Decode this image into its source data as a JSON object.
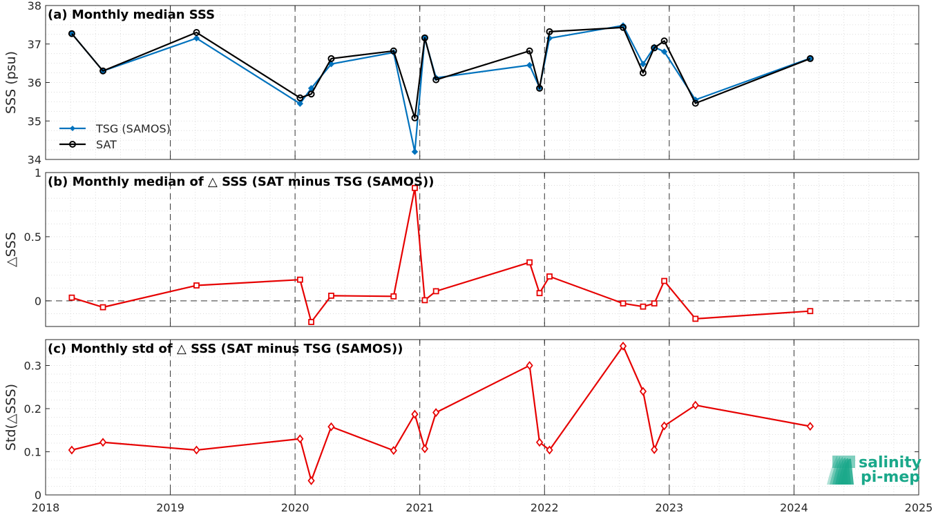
{
  "colors": {
    "tsg": "#0072BD",
    "sat": "#000000",
    "delta": "#E60000",
    "logo": "#1aa88a"
  },
  "logo": {
    "line1": "salinity",
    "line2": "pi-mep"
  },
  "x_ticks": [
    "2018",
    "2019",
    "2020",
    "2021",
    "2022",
    "2023",
    "2024",
    "2025"
  ],
  "chart_data": [
    {
      "type": "line",
      "title": "(a) Monthly median SSS",
      "ylabel": "SSS (psu)",
      "xlim": [
        2018,
        2025
      ],
      "ylim": [
        34,
        38
      ],
      "yticks": [
        "34",
        "35",
        "36",
        "37",
        "38"
      ],
      "grid": true,
      "legend": "bottom-left",
      "x": [
        2018.21,
        2018.46,
        2019.21,
        2020.04,
        2020.13,
        2020.29,
        2020.79,
        2020.96,
        2021.04,
        2021.13,
        2021.88,
        2021.96,
        2022.04,
        2022.63,
        2022.79,
        2022.88,
        2022.96,
        2023.21,
        2024.13
      ],
      "series": [
        {
          "name": "TSG (SAMOS)",
          "color": "#0072BD",
          "marker": "dot",
          "values": [
            37.27,
            36.3,
            37.15,
            35.45,
            35.85,
            36.48,
            36.78,
            34.2,
            37.15,
            36.12,
            36.45,
            35.87,
            37.15,
            37.48,
            36.48,
            36.92,
            36.8,
            35.55,
            36.63
          ]
        },
        {
          "name": "SAT",
          "color": "#000000",
          "marker": "circle",
          "values": [
            37.27,
            36.3,
            37.3,
            35.6,
            35.7,
            36.62,
            36.82,
            35.08,
            37.16,
            36.07,
            36.82,
            35.85,
            37.32,
            37.43,
            36.25,
            36.9,
            37.08,
            35.46,
            36.62
          ]
        }
      ]
    },
    {
      "type": "line",
      "title": "(b) Monthly median of △ SSS (SAT minus TSG (SAMOS))",
      "ylabel": "△SSS",
      "xlim": [
        2018,
        2025
      ],
      "ylim": [
        -0.2,
        1
      ],
      "yticks": [
        "0",
        "0.5",
        "1"
      ],
      "grid": true,
      "zero_line": true,
      "x": [
        2018.21,
        2018.46,
        2019.21,
        2020.04,
        2020.13,
        2020.29,
        2020.79,
        2020.96,
        2021.04,
        2021.13,
        2021.88,
        2021.96,
        2022.04,
        2022.63,
        2022.79,
        2022.88,
        2022.96,
        2023.21,
        2024.13
      ],
      "series": [
        {
          "name": "",
          "color": "#E60000",
          "marker": "square",
          "values": [
            0.025,
            -0.05,
            0.12,
            0.165,
            -0.165,
            0.04,
            0.035,
            0.88,
            0.005,
            0.075,
            0.3,
            0.06,
            0.19,
            -0.02,
            -0.045,
            -0.02,
            0.155,
            -0.14,
            -0.08
          ]
        }
      ]
    },
    {
      "type": "line",
      "title": "(c) Monthly std of △ SSS (SAT minus TSG (SAMOS))",
      "ylabel": "Std(△SSS)",
      "xlim": [
        2018,
        2025
      ],
      "ylim": [
        0,
        0.36
      ],
      "yticks": [
        "0",
        "0.1",
        "0.2",
        "0.3"
      ],
      "grid": true,
      "x": [
        2018.21,
        2018.46,
        2019.21,
        2020.04,
        2020.13,
        2020.29,
        2020.79,
        2020.96,
        2021.04,
        2021.13,
        2021.88,
        2021.96,
        2022.04,
        2022.63,
        2022.79,
        2022.88,
        2022.96,
        2023.21,
        2024.13
      ],
      "series": [
        {
          "name": "",
          "color": "#E60000",
          "marker": "diamond",
          "values": [
            0.104,
            0.122,
            0.104,
            0.13,
            0.033,
            0.158,
            0.103,
            0.187,
            0.107,
            0.191,
            0.3,
            0.122,
            0.104,
            0.345,
            0.24,
            0.105,
            0.16,
            0.208,
            0.159
          ]
        }
      ]
    }
  ]
}
